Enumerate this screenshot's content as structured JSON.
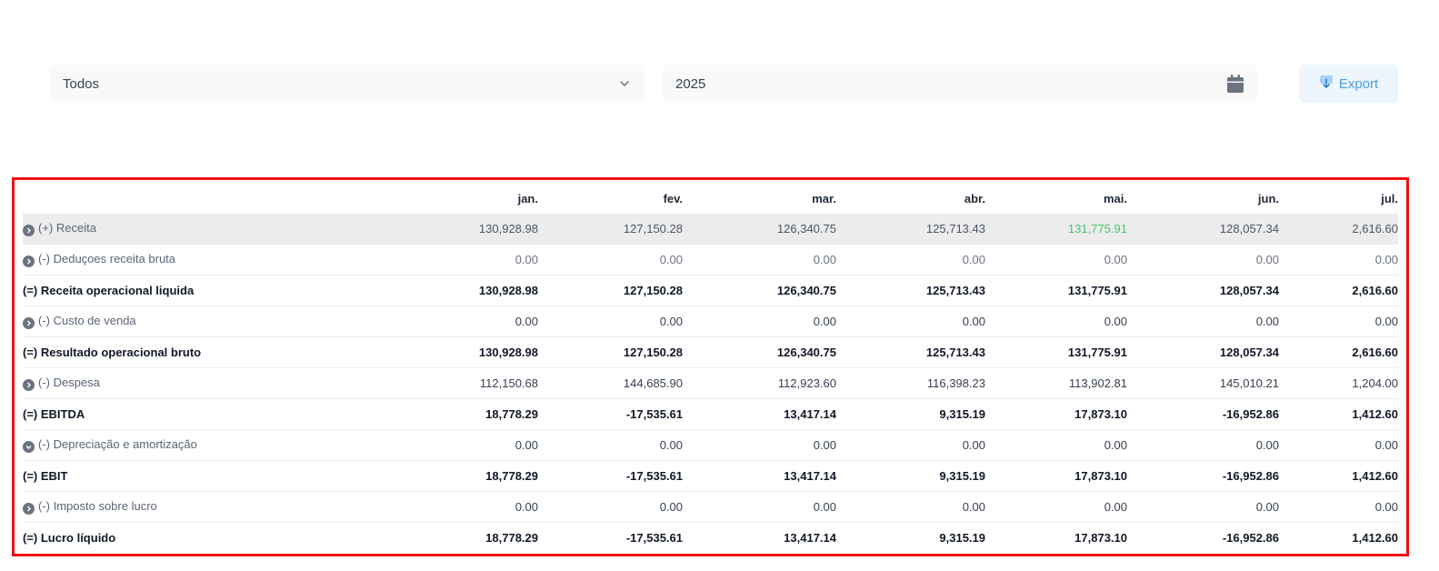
{
  "filters": {
    "category_value": "Todos",
    "year_value": "2025",
    "export_label": "Export"
  },
  "colors": {
    "accent": "#4a9be8",
    "positive_highlight": "#4cc26e",
    "frame": "#ee1111"
  },
  "table": {
    "columns": [
      "",
      "jan.",
      "fev.",
      "mar.",
      "abr.",
      "mai.",
      "jun.",
      "jul."
    ],
    "rows": [
      {
        "label": "(+) Receita",
        "values": [
          "130,928.98",
          "127,150.28",
          "126,340.75",
          "125,713.43",
          "131,775.91",
          "128,057.34",
          "2,616.60"
        ]
      },
      {
        "label": "(-) Deduçoes receita bruta",
        "values": [
          "0.00",
          "0.00",
          "0.00",
          "0.00",
          "0.00",
          "0.00",
          "0.00"
        ]
      },
      {
        "label": "(=) Receita operacional liquida",
        "values": [
          "130,928.98",
          "127,150.28",
          "126,340.75",
          "125,713.43",
          "131,775.91",
          "128,057.34",
          "2,616.60"
        ]
      },
      {
        "label": "(-) Custo de venda",
        "values": [
          "0.00",
          "0.00",
          "0.00",
          "0.00",
          "0.00",
          "0.00",
          "0.00"
        ]
      },
      {
        "label": "(=) Resultado operacional bruto",
        "values": [
          "130,928.98",
          "127,150.28",
          "126,340.75",
          "125,713.43",
          "131,775.91",
          "128,057.34",
          "2,616.60"
        ]
      },
      {
        "label": "(-) Despesa",
        "values": [
          "112,150.68",
          "144,685.90",
          "112,923.60",
          "116,398.23",
          "113,902.81",
          "145,010.21",
          "1,204.00"
        ]
      },
      {
        "label": "(=) EBITDA",
        "values": [
          "18,778.29",
          "-17,535.61",
          "13,417.14",
          "9,315.19",
          "17,873.10",
          "-16,952.86",
          "1,412.60"
        ]
      },
      {
        "label": "(-) Depreciação e amortização",
        "values": [
          "0.00",
          "0.00",
          "0.00",
          "0.00",
          "0.00",
          "0.00",
          "0.00"
        ]
      },
      {
        "label": "(=) EBIT",
        "values": [
          "18,778.29",
          "-17,535.61",
          "13,417.14",
          "9,315.19",
          "17,873.10",
          "-16,952.86",
          "1,412.60"
        ]
      },
      {
        "label": "(-) Imposto sobre lucro",
        "values": [
          "0.00",
          "0.00",
          "0.00",
          "0.00",
          "0.00",
          "0.00",
          "0.00"
        ]
      },
      {
        "label": "(=) Lucro líquido",
        "values": [
          "18,778.29",
          "-17,535.61",
          "13,417.14",
          "9,315.19",
          "17,873.10",
          "-16,952.86",
          "1,412.60"
        ]
      }
    ]
  }
}
